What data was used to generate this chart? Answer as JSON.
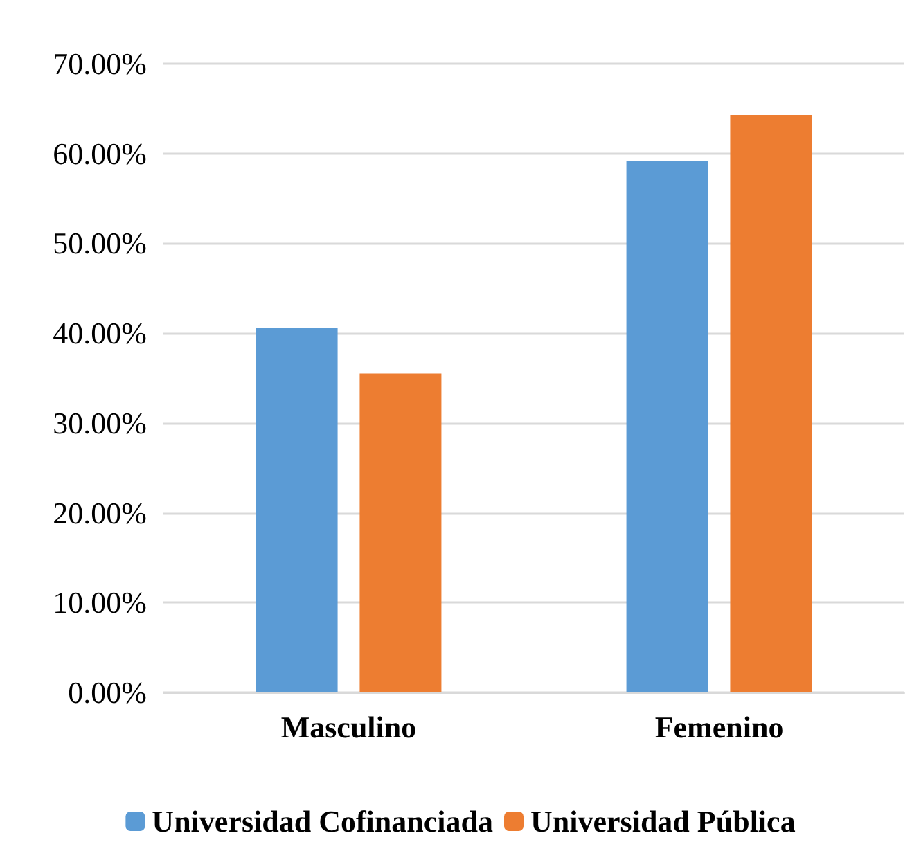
{
  "chart_data": {
    "type": "bar",
    "categories": [
      "Masculino",
      "Femenino"
    ],
    "series": [
      {
        "name": "Universidad Cofinanciada",
        "color": "#5b9bd5",
        "values": [
          40.6,
          59.2
        ]
      },
      {
        "name": "Universidad Pública",
        "color": "#ed7d31",
        "values": [
          35.5,
          64.3
        ]
      }
    ],
    "ylim": [
      0,
      70
    ],
    "yticks": [
      {
        "value": 0,
        "label": "0.00%"
      },
      {
        "value": 10,
        "label": "10.00%"
      },
      {
        "value": 20,
        "label": "20.00%"
      },
      {
        "value": 30,
        "label": "30.00%"
      },
      {
        "value": 40,
        "label": "40.00%"
      },
      {
        "value": 50,
        "label": "50.00%"
      },
      {
        "value": 60,
        "label": "60.00%"
      },
      {
        "value": 70,
        "label": "70.00%"
      }
    ],
    "grid": "y",
    "legend": "bottom"
  }
}
